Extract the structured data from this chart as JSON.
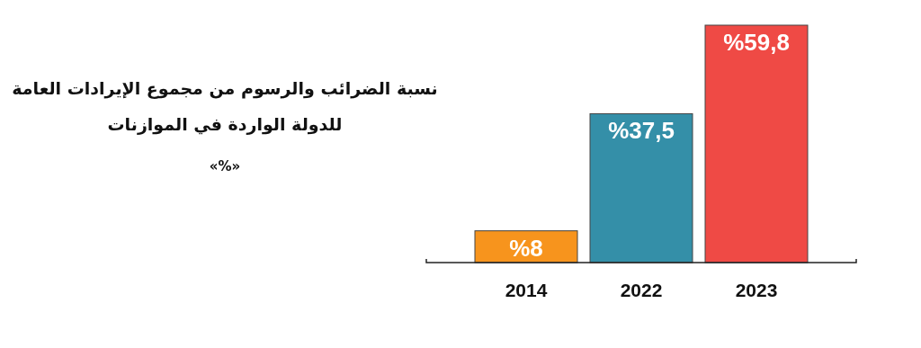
{
  "chart_data": {
    "type": "bar",
    "title": "نسبة الضرائب والرسوم من مجموع الإيرادات العامة للدولة الواردة في الموازنات",
    "subtitle": "«%»",
    "categories": [
      "2014",
      "2022",
      "2023"
    ],
    "values": [
      8,
      37.5,
      59.8
    ],
    "colors": [
      "#f7941d",
      "#348fa8",
      "#ef4a45"
    ],
    "value_labels": [
      "%8",
      "%37,5",
      "%59,8"
    ]
  }
}
